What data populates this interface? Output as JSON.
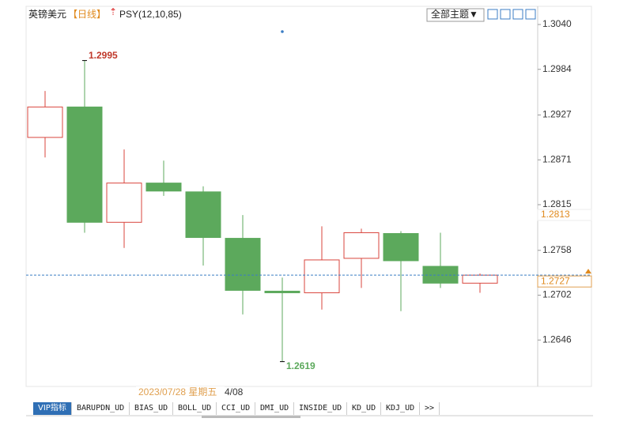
{
  "chart_data": {
    "type": "candlestick",
    "title": "英镑美元",
    "period": "【日线】",
    "indicator": "PSY(12,10,85)",
    "open": [
      1.2899,
      1.2937,
      1.2793,
      1.2842,
      1.2831,
      1.2773,
      1.2707,
      1.2705,
      1.2748,
      1.2779,
      1.2738,
      1.2717
    ],
    "high": [
      1.2957,
      1.2995,
      1.2884,
      1.287,
      1.2838,
      1.2802,
      1.2724,
      1.2788,
      1.2785,
      1.2782,
      1.278,
      1.2729
    ],
    "low": [
      1.2874,
      1.278,
      1.2761,
      1.2826,
      1.2739,
      1.2678,
      1.2619,
      1.2684,
      1.2711,
      1.2682,
      1.2711,
      1.2705
    ],
    "close": [
      1.2937,
      1.2793,
      1.2842,
      1.2832,
      1.2774,
      1.2708,
      1.2705,
      1.2746,
      1.278,
      1.2745,
      1.2717,
      1.2727
    ],
    "up_color": "#d9463e",
    "down_color": "#5ca95c",
    "ylim": [
      1.259,
      1.304
    ],
    "yticks": [
      {
        "value": 1.304,
        "label": "1.3040"
      },
      1.2984,
      1.2927,
      1.2871,
      1.2815,
      1.2758,
      1.2702,
      1.2646
    ],
    "level_marker": 1.2813,
    "crosshair_date": "2023/07/28 星期五",
    "partial_date": "4/08"
  },
  "ui": {
    "theme_button": "全部主题▼",
    "tabs": [
      "VIP指标",
      "BARUPDN_UD",
      "BIAS_UD",
      "BOLL_UD",
      "CCI_UD",
      "DMI_UD",
      "INSIDE_UD",
      "KD_UD",
      "KDJ_UD",
      ">>"
    ]
  }
}
